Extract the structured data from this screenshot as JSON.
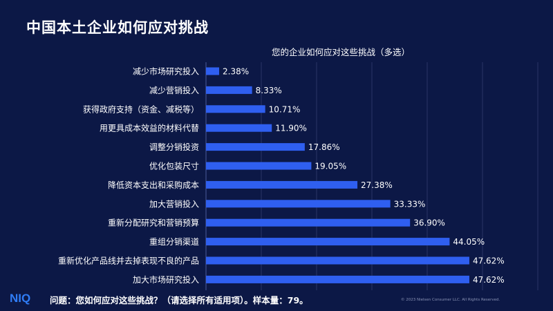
{
  "slide": {
    "title": "中国本土企业如何应对挑战",
    "question": "问题：您如何应对这些挑战？（请选择所有适用项）。样本量：79。",
    "copyright": "© 2023 Nielsen Consumer LLC. All Rights Reserved.",
    "logo_text": "NIQ"
  },
  "colors": {
    "background": "#0c1846",
    "bar": "#2f5ff0",
    "grid": "#2a3566",
    "text": "#ffffff"
  },
  "chart_data": {
    "type": "bar",
    "orientation": "horizontal",
    "title": "您的企业如何应对这些挑战（多选）",
    "xlim": [
      0,
      60
    ],
    "grid": true,
    "categories": [
      "减少市场研究投入",
      "减少营销投入",
      "获得政府支持（资金、减税等）",
      "用更具成本效益的材料代替",
      "调整分销投资",
      "优化包装尺寸",
      "降低资本支出和采购成本",
      "加大营销投入",
      "重新分配研究和营销预算",
      "重组分销渠道",
      "重新优化产品线并去掉表现不良的产品",
      "加大市场研究投入"
    ],
    "values": [
      2.38,
      8.33,
      10.71,
      11.9,
      17.86,
      19.05,
      27.38,
      33.33,
      36.9,
      44.05,
      47.62,
      47.62
    ],
    "labels": [
      "2.38%",
      "8.33%",
      "10.71%",
      "11.90%",
      "17.86%",
      "19.05%",
      "27.38%",
      "33.33%",
      "36.90%",
      "44.05%",
      "47.62%",
      "47.62%"
    ]
  }
}
